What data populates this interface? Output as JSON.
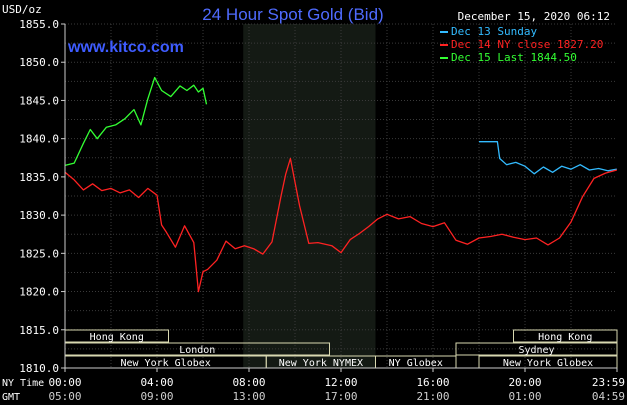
{
  "chart_data": {
    "type": "line",
    "title": "24 Hour Spot Gold (Bid)",
    "source": "www.kitco.com",
    "ylabel": "USD/oz",
    "date_stamp": "December 15, 2020 06:12",
    "ylim": [
      1810,
      1855
    ],
    "y_ticks": [
      "1855.0",
      "1850.0",
      "1845.0",
      "1840.0",
      "1835.0",
      "1830.0",
      "1825.0",
      "1820.0",
      "1815.0",
      "1810.0"
    ],
    "x_ticks_ny": [
      "00:00",
      "04:00",
      "08:00",
      "12:00",
      "16:00",
      "20:00",
      "23:59"
    ],
    "x_ticks_gmt": [
      "05:00",
      "09:00",
      "13:00",
      "17:00",
      "21:00",
      "01:00",
      "04:59"
    ],
    "ny_time_label": "NY Time",
    "gmt_label": "GMT",
    "legend": [
      {
        "label": "Dec 13 Sunday",
        "color": "#33bbff"
      },
      {
        "label": "Dec 14 NY close 1827.20",
        "color": "#ff2222"
      },
      {
        "label": "Dec 15 Last 1844.50",
        "color": "#33ff33"
      }
    ],
    "sessions": {
      "hong_kong": "Hong Kong",
      "london": "London",
      "new_york_globex": "New York Globex",
      "new_york_nymex": "New York NYMEX",
      "ny_globex": "NY Globex",
      "sydney": "Sydney"
    },
    "series": [
      {
        "name": "Dec 13 Sunday",
        "color": "#33bbff",
        "x": [
          18.0,
          18.8,
          18.9,
          19.2,
          19.6,
          20.0,
          20.4,
          20.8,
          21.2,
          21.6,
          22.0,
          22.4,
          22.8,
          23.2,
          23.6,
          23.99
        ],
        "values": [
          1839.6,
          1839.6,
          1837.4,
          1836.6,
          1836.9,
          1836.4,
          1835.4,
          1836.3,
          1835.6,
          1836.4,
          1836.0,
          1836.6,
          1835.9,
          1836.1,
          1835.8,
          1836.0
        ]
      },
      {
        "name": "Dec 14 NY close 1827.20",
        "color": "#ff2222",
        "x": [
          0.0,
          0.4,
          0.8,
          1.2,
          1.6,
          2.0,
          2.4,
          2.8,
          3.2,
          3.6,
          4.0,
          4.2,
          4.4,
          4.8,
          5.2,
          5.6,
          5.8,
          6.0,
          6.2,
          6.6,
          7.0,
          7.4,
          7.8,
          8.2,
          8.6,
          9.0,
          9.4,
          9.6,
          9.8,
          10.2,
          10.6,
          11.0,
          11.6,
          12.0,
          12.4,
          12.8,
          13.2,
          13.6,
          14.0,
          14.5,
          15.0,
          15.5,
          16.0,
          16.5,
          17.0,
          17.5,
          18.0,
          18.5,
          19.0,
          19.5,
          20.0,
          20.5,
          21.0,
          21.5,
          22.0,
          22.5,
          23.0,
          23.5,
          23.99
        ],
        "values": [
          1835.6,
          1834.6,
          1833.3,
          1834.1,
          1833.2,
          1833.5,
          1832.9,
          1833.3,
          1832.3,
          1833.5,
          1832.6,
          1828.7,
          1827.8,
          1825.8,
          1828.6,
          1826.4,
          1820.0,
          1822.6,
          1822.9,
          1824.1,
          1826.6,
          1825.6,
          1826.0,
          1825.6,
          1824.9,
          1826.5,
          1832.6,
          1835.4,
          1837.4,
          1831.2,
          1826.3,
          1826.4,
          1826.0,
          1825.1,
          1826.8,
          1827.6,
          1828.5,
          1829.5,
          1830.1,
          1829.5,
          1829.8,
          1828.9,
          1828.5,
          1829.0,
          1826.7,
          1826.2,
          1827.0,
          1827.2,
          1827.5,
          1827.1,
          1826.8,
          1827.0,
          1826.1,
          1827.0,
          1829.1,
          1832.4,
          1834.8,
          1835.5,
          1835.9
        ]
      },
      {
        "name": "Dec 15 Last 1844.50",
        "color": "#33ff33",
        "x": [
          0.0,
          0.4,
          0.8,
          1.1,
          1.4,
          1.8,
          2.2,
          2.6,
          3.0,
          3.3,
          3.6,
          3.9,
          4.2,
          4.6,
          5.0,
          5.3,
          5.6,
          5.8,
          6.0,
          6.15
        ],
        "values": [
          1836.5,
          1836.8,
          1839.4,
          1841.2,
          1840.0,
          1841.5,
          1841.8,
          1842.6,
          1843.8,
          1841.8,
          1845.2,
          1848.0,
          1846.3,
          1845.5,
          1846.9,
          1846.3,
          1847.0,
          1846.1,
          1846.6,
          1844.5
        ]
      }
    ]
  }
}
